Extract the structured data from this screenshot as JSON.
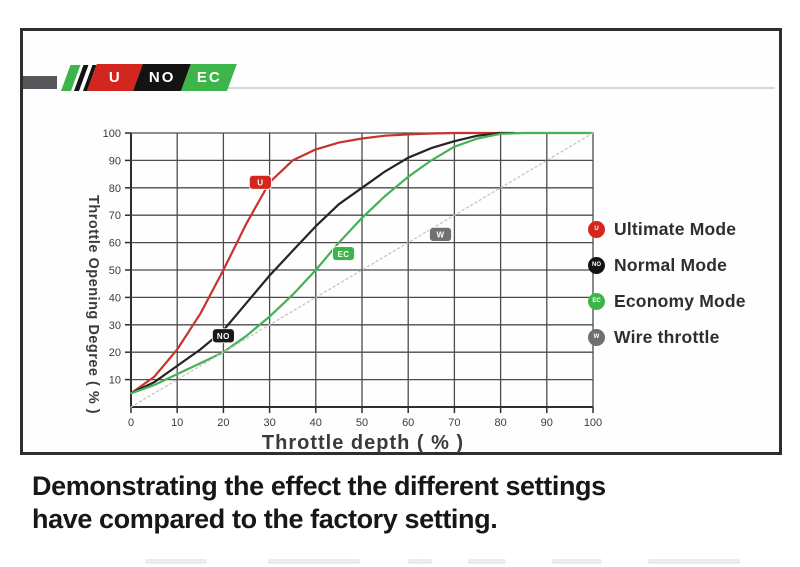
{
  "logo": {
    "segments": [
      {
        "label": "U",
        "color": "#d3261f"
      },
      {
        "label": "NO",
        "color": "#131313"
      },
      {
        "label": "EC",
        "color": "#3eb54a"
      }
    ],
    "stripe_colors": [
      "#3eb54a",
      "#131313",
      "#131313",
      "#e8632a"
    ],
    "bar_color": "#57575b"
  },
  "chart_data": {
    "type": "line",
    "title": "",
    "xlabel": "Throttle depth ( % )",
    "ylabel": "Throttle Opening Degree ( % )",
    "xlim": [
      0,
      100
    ],
    "ylim": [
      0,
      100
    ],
    "xticks": [
      0,
      10,
      20,
      30,
      40,
      50,
      60,
      70,
      80,
      90,
      100
    ],
    "yticks": [
      10,
      20,
      30,
      40,
      50,
      60,
      70,
      80,
      90,
      100
    ],
    "grid": true,
    "legend_position": "right-outside",
    "series": [
      {
        "name": "Ultimate Mode",
        "abbr": "U",
        "line_color": "#c6342c",
        "dot_color": "#d3261f",
        "style": "solid",
        "points": [
          [
            0,
            5
          ],
          [
            5,
            11
          ],
          [
            10,
            21
          ],
          [
            15,
            34
          ],
          [
            20,
            50
          ],
          [
            25,
            67
          ],
          [
            30,
            82
          ],
          [
            35,
            90
          ],
          [
            40,
            94
          ],
          [
            45,
            96.5
          ],
          [
            50,
            98
          ],
          [
            55,
            99
          ],
          [
            60,
            99.5
          ],
          [
            65,
            99.8
          ],
          [
            70,
            100
          ],
          [
            75,
            100
          ],
          [
            80,
            100
          ]
        ]
      },
      {
        "name": "Normal Mode",
        "abbr": "NO",
        "line_color": "#242424",
        "dot_color": "#131313",
        "style": "solid",
        "points": [
          [
            0,
            5
          ],
          [
            5,
            9
          ],
          [
            10,
            15
          ],
          [
            15,
            21
          ],
          [
            20,
            28
          ],
          [
            25,
            38
          ],
          [
            30,
            48
          ],
          [
            35,
            57
          ],
          [
            40,
            66
          ],
          [
            45,
            74
          ],
          [
            50,
            80
          ],
          [
            55,
            86
          ],
          [
            60,
            91
          ],
          [
            65,
            94.5
          ],
          [
            70,
            97
          ],
          [
            75,
            99
          ],
          [
            80,
            100
          ],
          [
            83,
            100
          ]
        ]
      },
      {
        "name": "Economy Mode",
        "abbr": "EC",
        "line_color": "#46b156",
        "dot_color": "#3eb54a",
        "style": "solid",
        "points": [
          [
            0,
            5
          ],
          [
            5,
            8
          ],
          [
            10,
            12
          ],
          [
            15,
            16
          ],
          [
            20,
            20
          ],
          [
            25,
            26
          ],
          [
            30,
            33
          ],
          [
            35,
            41
          ],
          [
            40,
            50
          ],
          [
            45,
            60
          ],
          [
            50,
            69
          ],
          [
            55,
            77
          ],
          [
            60,
            84
          ],
          [
            65,
            90
          ],
          [
            70,
            95
          ],
          [
            75,
            98
          ],
          [
            80,
            99.7
          ],
          [
            85,
            100
          ],
          [
            90,
            100
          ],
          [
            95,
            100
          ],
          [
            100,
            100
          ]
        ]
      },
      {
        "name": "Wire throttle",
        "abbr": "W",
        "line_color": "#c4c4c4",
        "dot_color": "#6f6f6f",
        "style": "dotted",
        "points": [
          [
            0,
            0
          ],
          [
            100,
            100
          ]
        ]
      }
    ],
    "badges": [
      {
        "label": "U",
        "x": 28,
        "y": 82,
        "color": "#d3261f"
      },
      {
        "label": "NO",
        "x": 20,
        "y": 26,
        "color": "#1a1a1a"
      },
      {
        "label": "EC",
        "x": 46,
        "y": 56,
        "color": "#3eb54a"
      },
      {
        "label": "W",
        "x": 67,
        "y": 63,
        "color": "#707070"
      }
    ]
  },
  "caption": {
    "line1": "Demonstrating the effect the different settings",
    "line2": "have compared to the factory setting."
  }
}
